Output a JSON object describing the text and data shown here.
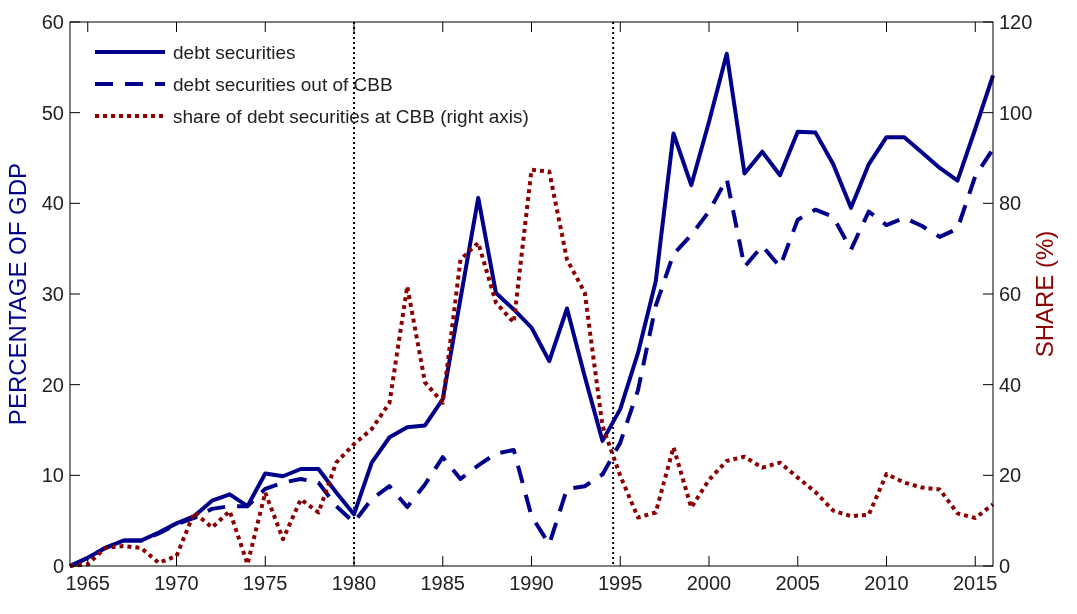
{
  "chart_data": {
    "type": "line",
    "ylabel": "PERCENTAGE OF GDP",
    "y2label": "SHARE (%)",
    "x": [
      1964,
      1965,
      1966,
      1967,
      1968,
      1969,
      1970,
      1971,
      1972,
      1973,
      1974,
      1975,
      1976,
      1977,
      1978,
      1979,
      1980,
      1981,
      1982,
      1983,
      1984,
      1985,
      1986,
      1987,
      1988,
      1989,
      1990,
      1991,
      1992,
      1993,
      1994,
      1995,
      1996,
      1997,
      1998,
      1999,
      2000,
      2001,
      2002,
      2003,
      2004,
      2005,
      2006,
      2007,
      2008,
      2009,
      2010,
      2011,
      2012,
      2013,
      2014,
      2015,
      2016
    ],
    "xlim": [
      1964,
      2016
    ],
    "xticks": [
      1965,
      1970,
      1975,
      1980,
      1985,
      1990,
      1995,
      2000,
      2005,
      2010,
      2015
    ],
    "ylim": [
      0,
      60
    ],
    "yticks": [
      0,
      10,
      20,
      30,
      40,
      50,
      60
    ],
    "y2lim": [
      0,
      120
    ],
    "y2ticks": [
      0,
      20,
      40,
      60,
      80,
      100,
      120
    ],
    "series": [
      {
        "name": "debt securities",
        "color": "#00008b",
        "line_style": "solid",
        "values": [
          0,
          0.9,
          2,
          2.8,
          2.8,
          3.7,
          4.7,
          5.5,
          7.2,
          7.9,
          6.6,
          10.2,
          9.9,
          10.7,
          10.7,
          8.1,
          5.7,
          11.4,
          14.2,
          15.3,
          15.5,
          18.4,
          29.5,
          40.6,
          30.1,
          28.3,
          26.3,
          22.6,
          28.4,
          20.9,
          13.8,
          17.3,
          23.5,
          31.4,
          47.7,
          42.0,
          49.0,
          56.5,
          43.3,
          45.7,
          43.1,
          47.9,
          47.8,
          44.3,
          39.5,
          44.3,
          47.3,
          47.3,
          45.6,
          43.9,
          42.5,
          48.2,
          54.1
        ]
      },
      {
        "name": "debt securities out of CBB",
        "color": "#00008b",
        "line_style": "dashed",
        "values": [
          0,
          0.9,
          2,
          2.8,
          2.8,
          3.6,
          4.6,
          5.3,
          6.3,
          6.6,
          6.6,
          8.5,
          9.2,
          9.6,
          9.2,
          6.6,
          4.8,
          7.4,
          8.8,
          6.5,
          9.0,
          12.0,
          9.6,
          11.1,
          12.4,
          12.8,
          5.5,
          2.4,
          8.5,
          8.8,
          10.1,
          13.6,
          19.4,
          28.7,
          34.4,
          36.5,
          39.1,
          42.7,
          33.0,
          35.3,
          33.0,
          38.2,
          39.3,
          38.5,
          34.9,
          39.1,
          37.6,
          38.4,
          37.5,
          36.3,
          37.2,
          43.0,
          46.0
        ]
      },
      {
        "name": "share of debt securities at CBB (right axis)",
        "color": "#8b0000",
        "line_style": "dotted",
        "axis": "y2",
        "values": [
          0,
          0.4,
          4,
          4.4,
          4,
          0.7,
          2.2,
          11.8,
          8.5,
          12.1,
          0.4,
          16.2,
          5.9,
          14.7,
          11.8,
          22.8,
          26.9,
          30.2,
          36,
          61.7,
          40.5,
          36,
          67.6,
          71.3,
          58.1,
          53.7,
          87.4,
          87,
          67.6,
          60.3,
          30.9,
          19.9,
          10.7,
          11.8,
          26.2,
          12.9,
          19.0,
          23.2,
          24.1,
          21.7,
          22.8,
          19.5,
          16.3,
          12.2,
          11.0,
          11.3,
          20.3,
          18.4,
          17.3,
          16.9,
          11.6,
          10.6,
          13.6
        ]
      }
    ],
    "ref_lines": [
      {
        "axis": "x",
        "value": 1980,
        "color": "#000000",
        "line_style": "dotted"
      },
      {
        "axis": "x",
        "value": 1994.6,
        "color": "#000000",
        "line_style": "dotted"
      }
    ],
    "legend": "top left",
    "grid": false
  }
}
